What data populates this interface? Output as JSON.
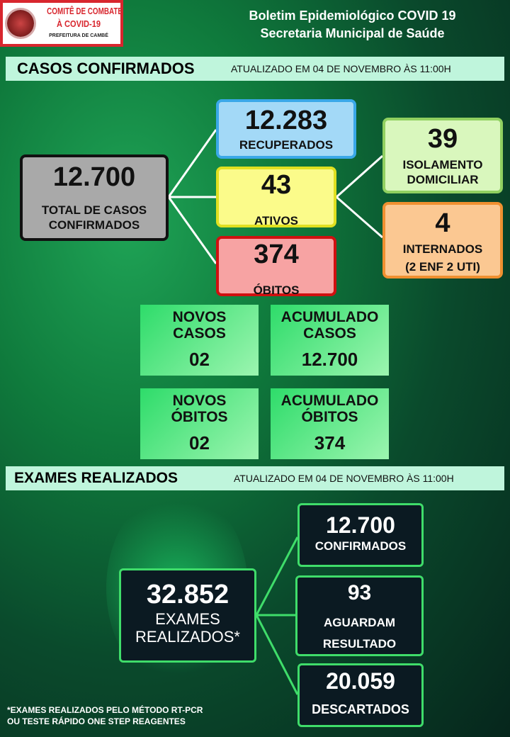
{
  "logo": {
    "line1": "COMITÊ DE COMBATE",
    "line2": "À COVID-19",
    "line3": "PREFEITURA DE CAMBÉ"
  },
  "header": {
    "title1": "Boletim Epidemiológico COVID 19",
    "title2": "Secretaria Municipal de Saúde"
  },
  "casos": {
    "heading": "CASOS CONFIRMADOS",
    "updated": "ATUALIZADO EM 04 DE NOVEMBRO ÀS 11:00H",
    "total": {
      "value": "12.700",
      "label1": "TOTAL DE CASOS",
      "label2": "CONFIRMADOS"
    },
    "recuperados": {
      "value": "12.283",
      "label": "RECUPERADOS"
    },
    "ativos": {
      "value": "43",
      "label": "ATIVOS"
    },
    "obitos": {
      "value": "374",
      "label": "ÓBITOS"
    },
    "isolamento": {
      "value": "39",
      "label1": "ISOLAMENTO",
      "label2": "DOMICILIAR"
    },
    "internados": {
      "value": "4",
      "label": "INTERNADOS",
      "detail": "(2 ENF 2 UTI)"
    },
    "novos_casos": {
      "label1": "NOVOS",
      "label2": "CASOS",
      "value": "02"
    },
    "acum_casos": {
      "label1": "ACUMULADO",
      "label2": "CASOS",
      "value": "12.700"
    },
    "novos_obitos": {
      "label1": "NOVOS",
      "label2": "ÓBITOS",
      "value": "02"
    },
    "acum_obitos": {
      "label1": "ACUMULADO",
      "label2": "ÓBITOS",
      "value": "374"
    }
  },
  "exames": {
    "heading": "EXAMES REALIZADOS",
    "updated": "ATUALIZADO EM 04 DE NOVEMBRO ÀS 11:00H",
    "total": {
      "value": "32.852",
      "label1": "EXAMES",
      "label2": "REALIZADOS*"
    },
    "confirmados": {
      "value": "12.700",
      "label": "CONFIRMADOS"
    },
    "aguardam": {
      "value": "93",
      "label1": "AGUARDAM",
      "label2": "RESULTADO"
    },
    "descartados": {
      "value": "20.059",
      "label": "DESCARTADOS"
    },
    "footnote1": "*EXAMES REALIZADOS PELO MÉTODO RT-PCR",
    "footnote2": "OU TESTE RÁPIDO ONE STEP REAGENTES"
  },
  "colors": {
    "recuperados": "#a3d9f7",
    "ativos": "#fbfb8a",
    "obitos": "#f7a3a3",
    "isolamento": "#d9f7bd",
    "internados": "#fbc892",
    "total": "#a9a9a9",
    "accent": "#3fdd6a"
  }
}
